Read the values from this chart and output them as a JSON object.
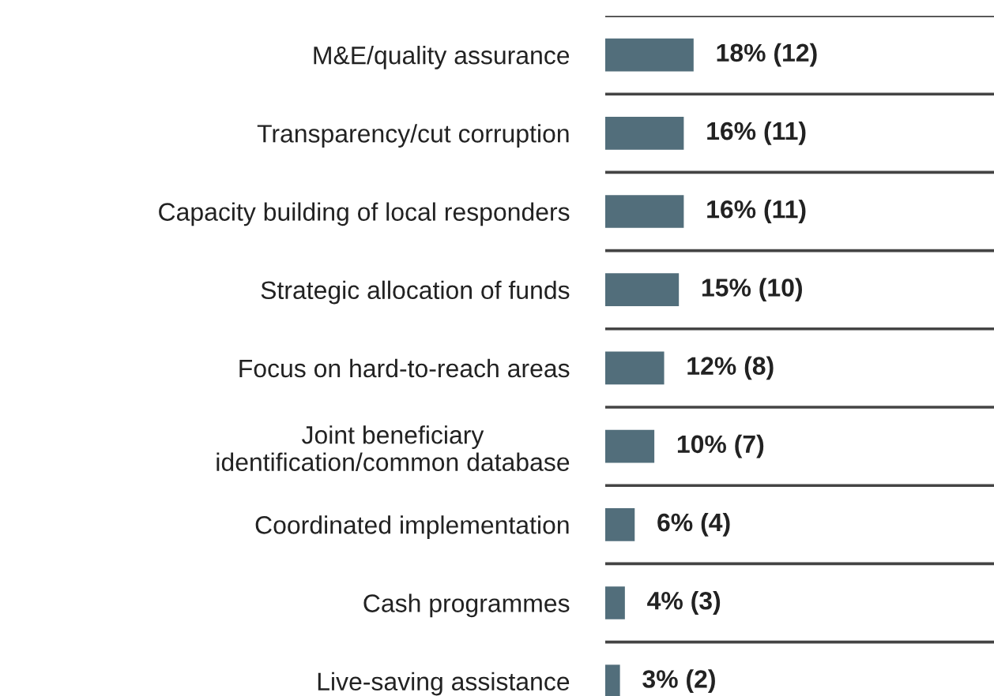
{
  "chart_data": {
    "type": "bar",
    "orientation": "horizontal",
    "categories": [
      "M&E/quality assurance",
      "Transparency/cut corruption",
      "Capacity building of local responders",
      "Strategic allocation of funds",
      "Focus on hard-to-reach areas",
      "Joint beneficiary\nidentification/common database",
      "Coordinated implementation",
      "Cash programmes",
      "Live-saving assistance"
    ],
    "values": [
      18,
      16,
      16,
      15,
      12,
      10,
      6,
      4,
      3
    ],
    "value_labels": [
      "18% (12)",
      "16% (11)",
      "16% (11)",
      "15% (10)",
      "12% (8)",
      "10% (7)",
      "6% (4)",
      "4% (3)",
      "3% (2)"
    ],
    "color": "#526e7b",
    "grid": "y",
    "legend": false
  }
}
